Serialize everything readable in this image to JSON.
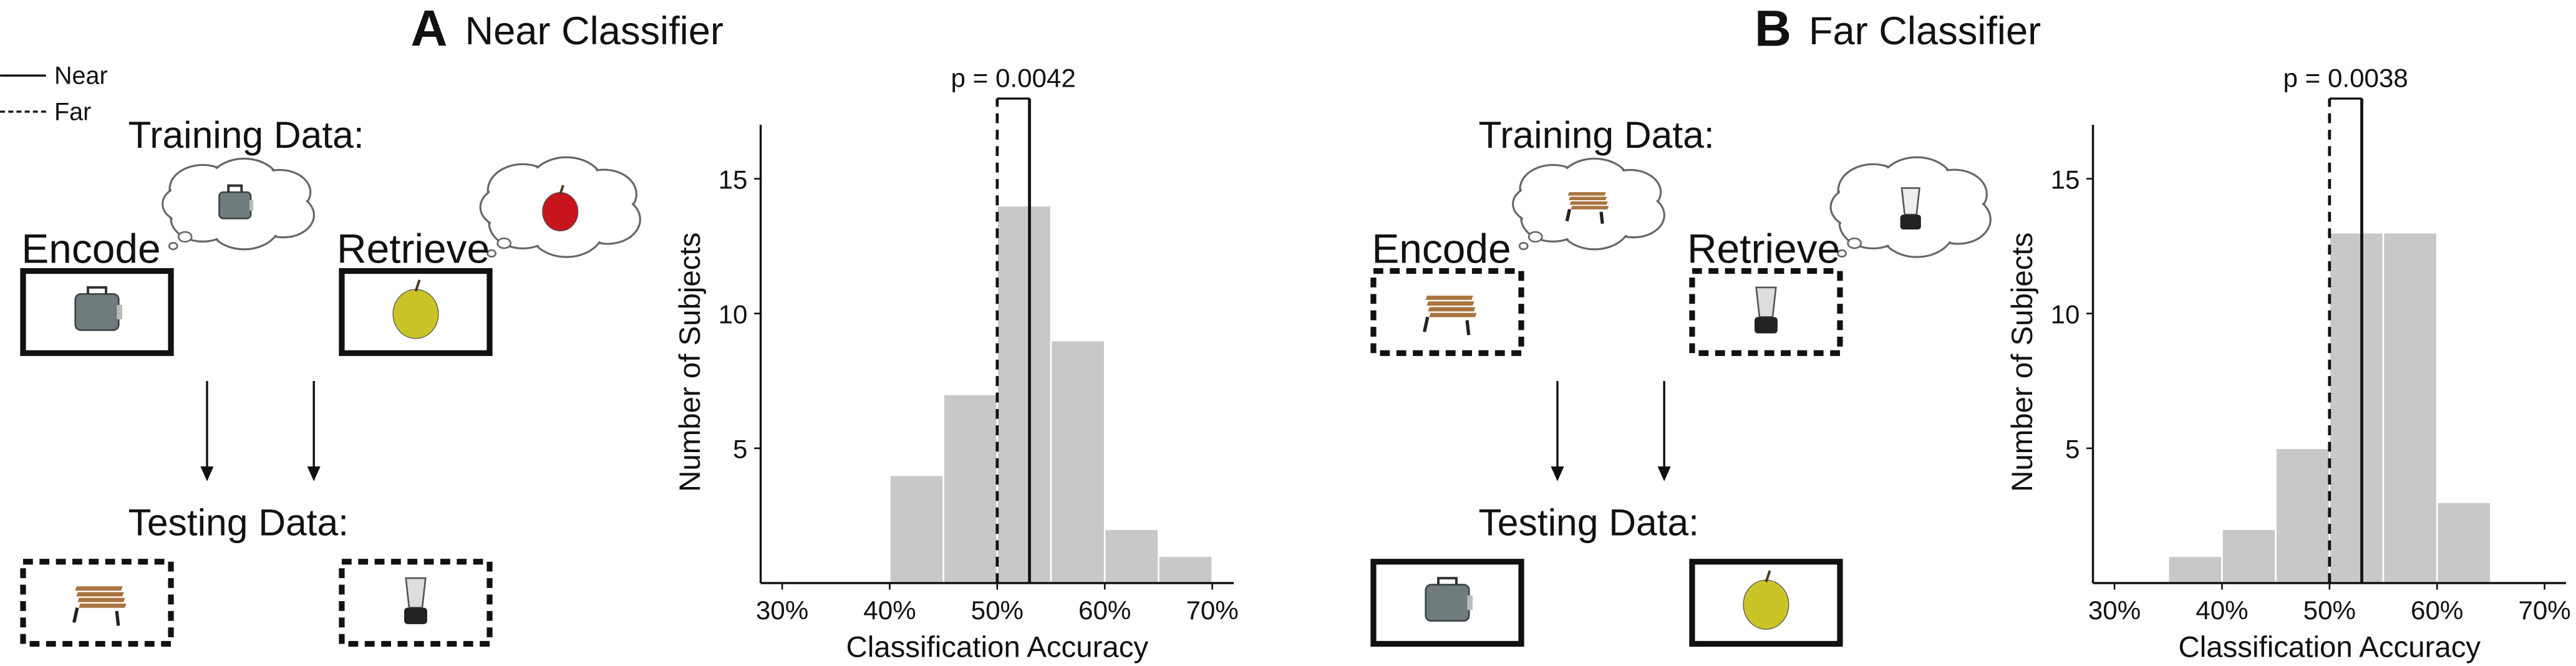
{
  "legend": [
    {
      "name": "Near",
      "style": "solid"
    },
    {
      "name": "Far",
      "style": "dashed"
    }
  ],
  "diagrams": [
    {
      "training": "Training Data:",
      "encode": "Encode",
      "retrieve": "Retrieve",
      "testing": "Testing Data:",
      "training_box_style": "solid",
      "testing_box_style": "dashed"
    },
    {
      "training": "Training Data:",
      "encode": "Encode",
      "retrieve": "Retrieve",
      "testing": "Testing Data:",
      "training_box_style": "dashed",
      "testing_box_style": "solid"
    }
  ],
  "chart_data": [
    {
      "type": "histogram",
      "panel_label": "A",
      "title": "Near Classifier",
      "x_label": "Classification Accuracy",
      "y_label": "Number of Subjects",
      "bins": [
        30,
        35,
        40,
        45,
        50,
        55,
        60,
        65,
        70
      ],
      "values": [
        0,
        0,
        4,
        7,
        14,
        9,
        2,
        1
      ],
      "color": "#c8c8c8",
      "xlim": [
        28,
        72
      ],
      "ylim": [
        0,
        17
      ],
      "xticks": [
        {
          "value": 30,
          "label": "30%"
        },
        {
          "value": 40,
          "label": "40%"
        },
        {
          "value": 50,
          "label": "50%"
        },
        {
          "value": 60,
          "label": "60%"
        },
        {
          "value": 70,
          "label": "70%"
        }
      ],
      "yticks": [
        5,
        10,
        15
      ],
      "reference_lines": [
        {
          "x": 53,
          "style": "solid"
        },
        {
          "x": 50,
          "style": "dashed"
        }
      ],
      "annotation": "p = 0.0042"
    },
    {
      "type": "histogram",
      "panel_label": "B",
      "title": "Far Classifier",
      "x_label": "Classification Accuracy",
      "y_label": "Number of Subjects",
      "bins": [
        30,
        35,
        40,
        45,
        50,
        55,
        60,
        65,
        70
      ],
      "values": [
        0,
        1,
        2,
        5,
        13,
        13,
        3,
        0
      ],
      "color": "#c8c8c8",
      "xlim": [
        28,
        72
      ],
      "ylim": [
        0,
        17
      ],
      "xticks": [
        {
          "value": 30,
          "label": "30%"
        },
        {
          "value": 40,
          "label": "40%"
        },
        {
          "value": 50,
          "label": "50%"
        },
        {
          "value": 60,
          "label": "60%"
        },
        {
          "value": 70,
          "label": "70%"
        }
      ],
      "yticks": [
        5,
        10,
        15
      ],
      "reference_lines": [
        {
          "x": 53,
          "style": "solid"
        },
        {
          "x": 50,
          "style": "dashed"
        }
      ],
      "annotation": "p = 0.0038"
    }
  ]
}
